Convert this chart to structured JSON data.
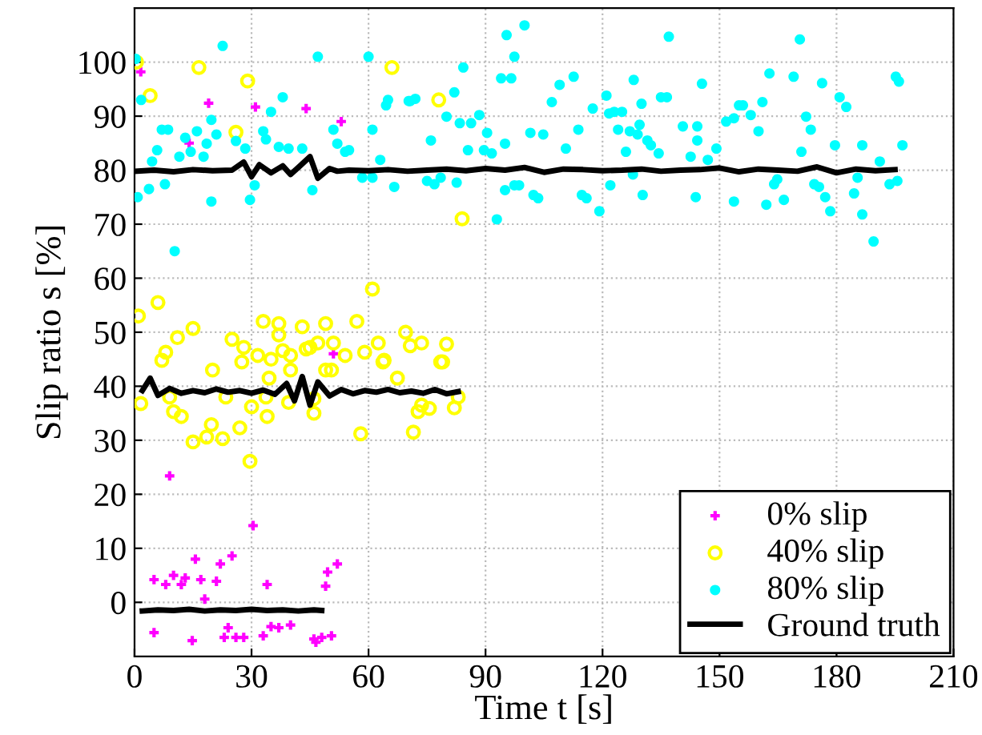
{
  "chart_data": {
    "type": "scatter",
    "xlabel": "Time t [s]",
    "ylabel": "Slip ratio s [%]",
    "xlim": [
      0,
      210
    ],
    "ylim": [
      -10,
      110
    ],
    "xticks": [
      0,
      30,
      60,
      90,
      120,
      150,
      180,
      210
    ],
    "yticks": [
      0,
      10,
      20,
      30,
      40,
      50,
      60,
      70,
      80,
      90,
      100
    ],
    "grid": true,
    "legend": "bottom right",
    "series": [
      {
        "name": "0% slip",
        "color": "#ff00ff",
        "marker": "cross",
        "x": [
          1.6,
          19,
          31,
          44,
          53,
          14,
          51,
          9,
          30.4,
          5,
          8,
          10,
          12,
          13,
          15.6,
          17,
          21,
          22,
          25,
          34,
          49,
          49.5,
          52,
          18,
          5,
          14.8,
          23,
          24,
          26,
          28,
          33,
          35,
          37,
          40,
          46,
          46.5,
          48,
          50.5
        ],
        "values": [
          98.2,
          92.4,
          91.7,
          91.4,
          89,
          85,
          46,
          23.4,
          14.2,
          4.2,
          3.3,
          5,
          3.3,
          4.5,
          8,
          4.2,
          3.9,
          7.1,
          8.6,
          3.3,
          3,
          5.6,
          7.1,
          0.6,
          -5.6,
          -7.1,
          -6.5,
          -4.7,
          -6.5,
          -6.5,
          -6.2,
          -4.5,
          -4.7,
          -4.2,
          -6.8,
          -7.4,
          -6.5,
          -6.2
        ]
      },
      {
        "name": "40% slip",
        "color": "#ffff00",
        "marker": "open circle",
        "x": [
          0.5,
          16.5,
          29,
          4,
          26,
          66,
          78,
          84,
          61,
          6,
          1,
          11,
          15,
          33,
          37,
          37,
          43,
          49,
          57,
          69.5,
          8,
          25,
          28,
          31.6,
          35,
          38,
          40,
          44,
          45,
          47,
          51,
          54,
          59,
          62.5,
          70.7,
          64,
          7,
          73.6,
          80,
          79,
          1.6,
          10,
          12,
          9,
          15,
          18.5,
          19.7,
          22.6,
          20,
          23.4,
          27.5,
          27,
          29.6,
          30,
          33.7,
          34,
          34.5,
          40,
          39.5,
          46,
          46,
          49,
          50.5,
          58,
          63.7,
          67.4,
          71.5,
          72.7,
          73.6,
          75.6,
          78.5,
          83,
          82
        ],
        "values": [
          100,
          99,
          96.5,
          93.8,
          87,
          99,
          93,
          71,
          58,
          55.5,
          53,
          49,
          50.7,
          52,
          51.6,
          49.5,
          51,
          51.6,
          52,
          50,
          46.3,
          48.7,
          47.2,
          45.7,
          45,
          46.6,
          45.7,
          46.9,
          47.2,
          48,
          48,
          45.7,
          46.3,
          48,
          47.5,
          44.8,
          44.8,
          48,
          47.8,
          44.5,
          36.8,
          35.3,
          34.4,
          38,
          29.7,
          30.6,
          32.9,
          30.3,
          43,
          38,
          44.5,
          32.3,
          26.1,
          36.2,
          38,
          34.4,
          41.5,
          43,
          37,
          37.7,
          35,
          43,
          43,
          31.2,
          44.5,
          41.5,
          31.5,
          35.3,
          36.5,
          35.9,
          44.5,
          38,
          36
        ]
      },
      {
        "name": "80% slip",
        "color": "#00ffff",
        "marker": "circle",
        "x": [
          0.3,
          22.6,
          47,
          60,
          1.7,
          38,
          65,
          64.5,
          70.7,
          19.7,
          35,
          7,
          8.6,
          16,
          21,
          33,
          51,
          61,
          13,
          26,
          33.7,
          18.5,
          5.8,
          14.4,
          28.4,
          37,
          39.5,
          43,
          52,
          54,
          55,
          11.5,
          17.7,
          4.5,
          63,
          58.4,
          61,
          66.6,
          0.8,
          3.7,
          7.8,
          19.7,
          29.6,
          30.8,
          45.6,
          10.3,
          100,
          95.4,
          137,
          97.4,
          84.3,
          94,
          96.6,
          112.6,
          128,
          109,
          145.5,
          70.3,
          72,
          82,
          121,
          135,
          136.5,
          107,
          130,
          117.5,
          121.7,
          123,
          125,
          80,
          88.4,
          83.4,
          86.3,
          129.5,
          140.6,
          144.3,
          90.4,
          101.5,
          104.8,
          113.8,
          124,
          127,
          129,
          76,
          95,
          131.5,
          132.4,
          144.3,
          85.5,
          89.6,
          91.6,
          110.6,
          126,
          134.4,
          142.6,
          147,
          75,
          76.9,
          78.5,
          82.6,
          97.4,
          98.6,
          95,
          102.3,
          103.5,
          114.7,
          115.9,
          122,
          130.3,
          143.9,
          119.2,
          92.9,
          127.8,
          170.6,
          162.8,
          169,
          195.2,
          196,
          176.3,
          180.8,
          182.5,
          161,
          155,
          156,
          158,
          151.7,
          153.7,
          172.2,
          160,
          173.4,
          149.2,
          171,
          179.6,
          186.6,
          196.9,
          191.1,
          164.8,
          164,
          174.3,
          175.5,
          185.4,
          193.6,
          195.6,
          177.1,
          184.5,
          153.7,
          162,
          166.5,
          178.4,
          186.6,
          189.5
        ],
        "values": [
          100.6,
          103,
          101,
          101,
          93,
          93.5,
          93,
          92,
          92.8,
          89.3,
          90.8,
          87.5,
          87.5,
          87.2,
          86.6,
          87.2,
          87.5,
          87.5,
          86,
          85.4,
          85.7,
          84.9,
          83.7,
          83.4,
          84,
          84.3,
          84,
          84,
          84.9,
          83.4,
          83.7,
          82.5,
          82.5,
          81.6,
          81.9,
          78.6,
          78.6,
          76.9,
          75,
          76.5,
          77.4,
          74.2,
          74.5,
          77.2,
          76.3,
          65,
          106.8,
          105,
          104.7,
          101,
          99,
          97,
          97,
          97.3,
          96.7,
          95.8,
          96,
          92.8,
          93.2,
          94.4,
          93.8,
          93.5,
          93.5,
          92.6,
          92.3,
          91.4,
          90.5,
          90.8,
          90.8,
          89.9,
          90.2,
          88.7,
          88.7,
          88.4,
          88.1,
          88.1,
          86.9,
          86.9,
          86.6,
          87.5,
          87.5,
          87.2,
          86.6,
          85.5,
          84.9,
          85.5,
          84.6,
          85.5,
          83.7,
          83.7,
          83.1,
          84,
          83.4,
          83.1,
          82.5,
          81.9,
          78,
          77.4,
          78.6,
          77.7,
          77.2,
          77.2,
          76.3,
          75.4,
          74.8,
          75.4,
          74.8,
          77.2,
          75.4,
          75,
          72.4,
          70.9,
          79.2,
          104.2,
          97.9,
          97.3,
          97.3,
          96.4,
          96.1,
          93.5,
          91.7,
          92.6,
          92,
          92,
          90.2,
          89,
          89.6,
          89.9,
          87.2,
          87.5,
          84,
          83.4,
          84.6,
          84.6,
          84.6,
          81.6,
          78.3,
          77.4,
          77.4,
          76.9,
          78.6,
          77.4,
          78,
          75,
          75.7,
          74.2,
          73.6,
          74.5,
          72.4,
          71.8,
          66.8
        ]
      },
      {
        "name": "Ground truth",
        "color": "#000000",
        "type": "line",
        "marker": "none",
        "x": [
          0,
          5,
          10,
          15,
          20,
          25,
          28,
          30,
          32,
          35,
          38,
          40,
          42,
          45,
          47,
          50,
          52,
          55,
          60,
          65,
          70,
          75,
          80,
          85,
          90,
          95,
          100,
          105,
          110,
          115,
          120,
          125,
          130,
          135,
          140,
          145,
          150,
          155,
          160,
          165,
          170,
          175,
          180,
          185,
          190,
          195
        ],
        "values": [
          79.8,
          80,
          79.7,
          80.1,
          79.9,
          80,
          81.5,
          78.8,
          81,
          79.5,
          80.8,
          79.2,
          80.5,
          82.5,
          78.5,
          80.3,
          79.8,
          80,
          79.9,
          80.1,
          79.8,
          80,
          80.2,
          79.9,
          80.3,
          80,
          80.5,
          79.6,
          80.2,
          80.1,
          79.9,
          80,
          80.2,
          79.8,
          80,
          80.1,
          80.4,
          79.7,
          80.2,
          80,
          79.8,
          80.6,
          79.5,
          80.2,
          79.9,
          80.1
        ]
      },
      {
        "color": "#000000",
        "type": "line",
        "marker": "none",
        "x": [
          2,
          4,
          6,
          9,
          12,
          15,
          18,
          21,
          24,
          27,
          30,
          33,
          36,
          39,
          41,
          43,
          45,
          47,
          50,
          53,
          56,
          59,
          62,
          65,
          68,
          71,
          74,
          77,
          80,
          83
        ],
        "values": [
          39.2,
          41.5,
          38.3,
          39.6,
          38.7,
          39.2,
          38.8,
          39.5,
          38.9,
          39.2,
          38.7,
          39.3,
          38.5,
          40.5,
          37.3,
          41.8,
          36.5,
          40.8,
          38.2,
          39.4,
          38.6,
          39.2,
          38.9,
          39.4,
          38.8,
          39.1,
          38.7,
          39.4,
          38.6,
          39
        ]
      },
      {
        "color": "#000000",
        "type": "line",
        "marker": "none",
        "x": [
          2,
          6,
          10,
          14,
          18,
          22,
          26,
          30,
          34,
          38,
          42,
          46,
          48
        ],
        "values": [
          -1.6,
          -1.4,
          -1.5,
          -1.3,
          -1.6,
          -1.4,
          -1.5,
          -1.3,
          -1.5,
          -1.4,
          -1.6,
          -1.4,
          -1.5
        ]
      }
    ]
  }
}
